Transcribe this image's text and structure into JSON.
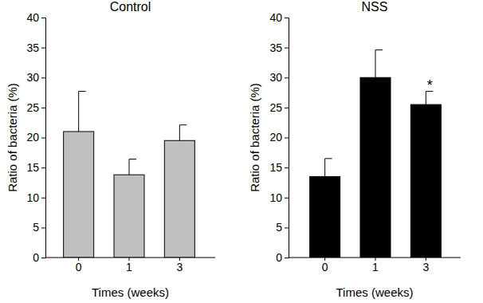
{
  "chart_data": [
    {
      "type": "bar",
      "title": "Control",
      "x_label": "Times (weeks)",
      "y_label": "Ratio of bacteria (%)",
      "categories": [
        "0",
        "1",
        "3"
      ],
      "values": [
        21,
        13.8,
        19.5
      ],
      "errors": [
        6.7,
        2.6,
        2.6
      ],
      "color": "#c0c0c0",
      "ylim": [
        0,
        40
      ],
      "yticks": [
        0,
        5,
        10,
        15,
        20,
        25,
        30,
        35,
        40
      ]
    },
    {
      "type": "bar",
      "title": "NSS",
      "x_label": "Times (weeks)",
      "y_label": "Ratio of bacteria (%)",
      "categories": [
        "0",
        "1",
        "3"
      ],
      "values": [
        13.5,
        30,
        25.5
      ],
      "errors": [
        3,
        4.6,
        2.2
      ],
      "color": "#000000",
      "ylim": [
        0,
        40
      ],
      "yticks": [
        0,
        5,
        10,
        15,
        20,
        25,
        30,
        35,
        40
      ],
      "annotations": [
        {
          "text": "*",
          "category": "3"
        }
      ]
    }
  ]
}
